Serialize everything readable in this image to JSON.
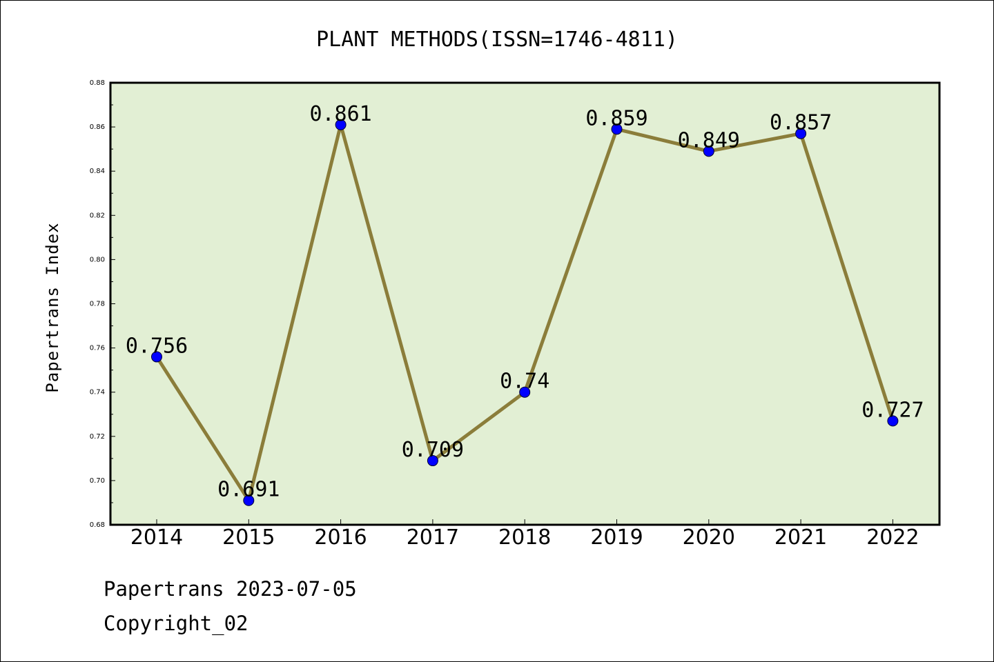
{
  "chart_data": {
    "type": "line",
    "title": "PLANT METHODS(ISSN=1746-4811)",
    "xlabel": "",
    "ylabel": "Papertrans Index",
    "categories": [
      "2014",
      "2015",
      "2016",
      "2017",
      "2018",
      "2019",
      "2020",
      "2021",
      "2022"
    ],
    "series": [
      {
        "values": [
          0.756,
          0.691,
          0.861,
          0.709,
          0.74,
          0.859,
          0.849,
          0.857,
          0.727
        ],
        "labels": [
          "0.756",
          "0.691",
          "0.861",
          "0.709",
          "0.74",
          "0.859",
          "0.849",
          "0.857",
          "0.727"
        ],
        "line_color": "#8b7d3a",
        "marker_color": "#0000ff"
      }
    ],
    "ylim": [
      0.68,
      0.88
    ],
    "yticks": [
      "0.68",
      "0.70",
      "0.72",
      "0.74",
      "0.76",
      "0.78",
      "0.80",
      "0.82",
      "0.84",
      "0.86",
      "0.88"
    ],
    "plot_background": "#e2efd4",
    "grid": false,
    "legend": "none"
  },
  "footer": {
    "line1": "Papertrans 2023-07-05",
    "line2": "Copyright_02"
  }
}
